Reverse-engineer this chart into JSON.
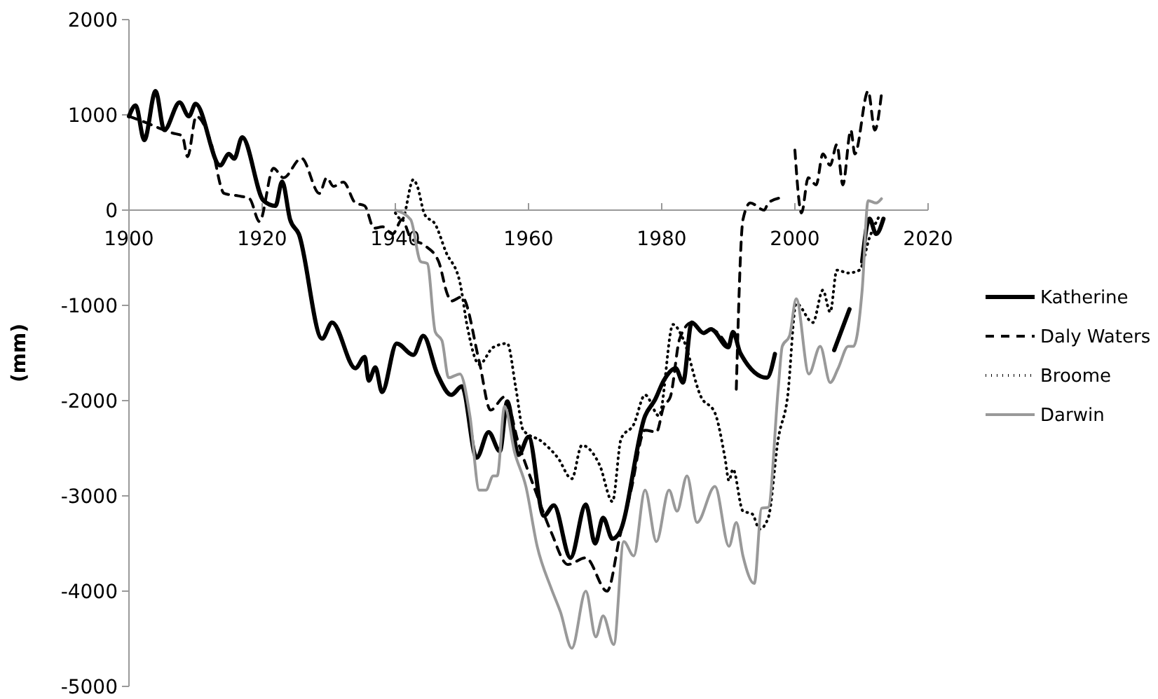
{
  "chart_data": {
    "type": "line",
    "ylabel": "(mm)",
    "xlim": [
      1900,
      2020
    ],
    "xticks": [
      1900,
      1920,
      1940,
      1960,
      1980,
      2000,
      2020
    ],
    "ylim": [
      -5000,
      2000
    ],
    "yticks": [
      -5000,
      -4000,
      -3000,
      -2000,
      -1000,
      0,
      1000,
      2000
    ],
    "grid": false,
    "legend": "right",
    "series": [
      {
        "name": "Katherine",
        "color": "#000000",
        "line_style": "solid",
        "x": [
          1900,
          1901,
          1902.3,
          1904,
          1905.3,
          1907.6,
          1909,
          1910,
          1913.7,
          1915,
          1915.8,
          1917,
          1920.2,
          1922,
          1923,
          1924.2,
          1925.5,
          1929,
          1930.5,
          1934,
          1935.4,
          1936,
          1937,
          1938,
          1940.2,
          1942.7,
          1944.2,
          1946.3,
          1948.4,
          1950,
          1952.2,
          1954,
          1955.7,
          1956.8,
          1958.5,
          1960,
          1962.3,
          1963.8,
          1966.3,
          1968.6,
          1970,
          1971.2,
          1972.6,
          1973.7,
          1977.5,
          1979,
          1980.3,
          1982.1,
          1983.2,
          1984.5,
          1986.3,
          1987.4,
          1990,
          1990.7,
          1991.8,
          1995.8,
          1997,
          2001,
          2005.9,
          2008.2,
          2009,
          2010.1,
          2011.2,
          2012.2,
          2013.3
        ],
        "values": [
          985,
          1100,
          735,
          1250,
          840,
          1130,
          985,
          1115,
          470,
          590,
          540,
          765,
          100,
          45,
          300,
          -100,
          -250,
          -1350,
          -1180,
          -1660,
          -1540,
          -1790,
          -1650,
          -1910,
          -1400,
          -1520,
          -1320,
          -1720,
          -1940,
          -1850,
          -2600,
          -2330,
          -2530,
          -2010,
          -2570,
          -2380,
          -3210,
          -3100,
          -3650,
          -3090,
          -3500,
          -3230,
          -3450,
          -3380,
          -2160,
          -1990,
          -1790,
          -1660,
          -1810,
          -1180,
          -1290,
          -1250,
          -1440,
          -1280,
          -1500,
          -1760,
          -1510,
          null,
          -1470,
          -1040,
          null,
          -540,
          -90,
          -250,
          -90
        ]
      },
      {
        "name": "Daly Waters",
        "color": "#000000",
        "line_style": "dashed",
        "x": [
          1900,
          1902.3,
          1905.3,
          1906.5,
          1908,
          1908.8,
          1910.1,
          1912.2,
          1914.3,
          1916.4,
          1918.1,
          1919.6,
          1921.7,
          1923.2,
          1925.9,
          1928.6,
          1929.7,
          1930.7,
          1932.2,
          1934,
          1935.4,
          1936.8,
          1938.1,
          1939.6,
          1941,
          1942.3,
          1944.4,
          1946.5,
          1947.8,
          1948.4,
          1950,
          1952.6,
          1954.3,
          1956.4,
          1958.5,
          1961,
          1963.4,
          1965.9,
          1968.6,
          1971.8,
          1973.7,
          1975.4,
          1977.5,
          1979.2,
          1980.3,
          1981.3,
          1982.7,
          1984.5,
          1986.3,
          1987.4,
          1990,
          1990.6,
          1991.2,
          1992.2,
          1993.3,
          1995.4,
          1996,
          1997.9,
          1999,
          2000,
          2001,
          2002,
          2003.2,
          2004.2,
          2005.3,
          2006.3,
          2007.2,
          2008.4,
          2009,
          2011,
          2012,
          2013
        ],
        "values": [
          985,
          925,
          840,
          810,
          780,
          560,
          985,
          735,
          175,
          150,
          120,
          -120,
          440,
          340,
          545,
          175,
          340,
          250,
          295,
          75,
          45,
          -190,
          -175,
          -250,
          -100,
          -290,
          -370,
          -540,
          -880,
          -955,
          -910,
          -1590,
          -2100,
          -1960,
          -2450,
          -2940,
          -3380,
          -3720,
          -3650,
          -4000,
          -3430,
          -2940,
          -2310,
          -2330,
          -2060,
          -1960,
          -1350,
          -1180,
          -1290,
          -1250,
          -1440,
          null,
          -1880,
          -100,
          75,
          0,
          75,
          130,
          null,
          630,
          -30,
          340,
          265,
          590,
          470,
          690,
          265,
          840,
          590,
          1250,
          840,
          1220
        ]
      },
      {
        "name": "Broome",
        "color": "#000000",
        "line_style": "dotted",
        "x": [
          1940,
          1941,
          1942.7,
          1943.3,
          1944.4,
          1946,
          1947.6,
          1949.7,
          1950.8,
          1952.6,
          1954.7,
          1956.8,
          1958.1,
          1959.2,
          1962,
          1964.4,
          1966.5,
          1968,
          1970.7,
          1972.6,
          1973.9,
          1975.8,
          1977.5,
          1979.6,
          1981.7,
          1983.2,
          1985.9,
          1988,
          1989.5,
          1990.1,
          1990.7,
          1992.2,
          1993.6,
          1994.7,
          1996,
          1997.5,
          1998.9,
          2000.2,
          2002.7,
          2004.2,
          2005.3,
          2006.3,
          2008,
          2009.7,
          2011.2,
          2012.8
        ],
        "values": [
          -30,
          -100,
          320,
          250,
          -45,
          -150,
          -440,
          -760,
          -1220,
          -1620,
          -1440,
          -1400,
          -1870,
          -2310,
          -2430,
          -2600,
          -2820,
          -2470,
          -2680,
          -3060,
          -2400,
          -2250,
          -1940,
          -2160,
          -1200,
          -1350,
          -1960,
          -2130,
          -2600,
          -2840,
          -2720,
          -3160,
          -3190,
          -3350,
          -3230,
          -2400,
          -1960,
          -980,
          -1180,
          -840,
          -1070,
          -630,
          -660,
          -630,
          -290,
          -45
        ]
      },
      {
        "name": "Darwin",
        "color": "#999999",
        "line_style": "solid",
        "x": [
          1940,
          1942.3,
          1943.8,
          1944.8,
          1946,
          1947,
          1948,
          1949.7,
          1951.2,
          1952.6,
          1953.6,
          1954.7,
          1955.3,
          1956.4,
          1957.9,
          1959.6,
          1961.3,
          1963.4,
          1964.8,
          1966.5,
          1968.6,
          1970.1,
          1971.2,
          1972.8,
          1974.3,
          1975.8,
          1977.5,
          1979.2,
          1981.1,
          1982.3,
          1983.8,
          1985.3,
          1988,
          1990.1,
          1991.2,
          1992.2,
          1993.9,
          1995,
          1996,
          1997.5,
          1998.1,
          1999.2,
          2000.2,
          2002.1,
          2003.8,
          2005.3,
          2006.5,
          2008,
          2008.8,
          2010.1,
          2011,
          2012.2,
          2013
        ],
        "values": [
          0,
          -100,
          -540,
          -560,
          -1280,
          -1370,
          -1760,
          -1720,
          -2160,
          -2940,
          -2940,
          -2790,
          -2790,
          -2060,
          -2540,
          -2900,
          -3530,
          -3970,
          -4220,
          -4600,
          -4000,
          -4480,
          -4260,
          -4560,
          -3480,
          -3630,
          -2940,
          -3480,
          -2940,
          -3160,
          -2790,
          -3280,
          -2900,
          -3530,
          -3280,
          -3630,
          -3920,
          -3130,
          -3120,
          -1870,
          -1430,
          -1320,
          -930,
          -1720,
          -1430,
          -1810,
          -1660,
          -1430,
          -1430,
          -840,
          100,
          75,
          120
        ]
      }
    ]
  }
}
